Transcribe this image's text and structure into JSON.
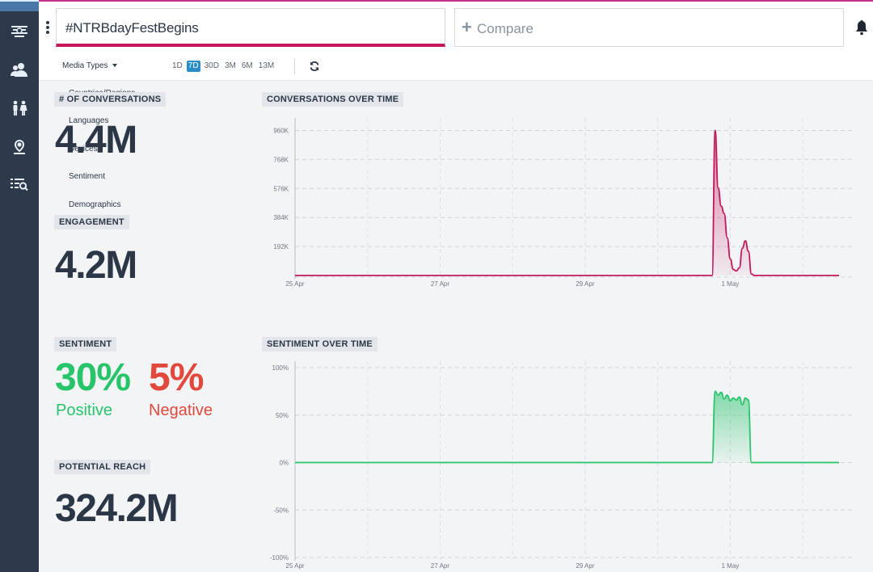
{
  "header": {
    "query": "#NTRBdayFestBegins",
    "compare_label": "Compare"
  },
  "toolbar": {
    "media_types": "Media Types",
    "ranges": [
      "1D",
      "7D",
      "30D",
      "3M",
      "6M",
      "13M"
    ],
    "active_range": "7D"
  },
  "dropdown": {
    "items": [
      "Countries/Regions",
      "Languages",
      "Devices",
      "Sentiment",
      "Demographics"
    ]
  },
  "metrics": {
    "conversations": {
      "label": "# OF CONVERSATIONS",
      "value": "4.4M"
    },
    "engagement": {
      "label": "ENGAGEMENT",
      "value": "4.2M"
    },
    "sentiment": {
      "label": "SENTIMENT",
      "positive_value": "30%",
      "positive_label": "Positive",
      "negative_value": "5%",
      "negative_label": "Negative"
    },
    "reach": {
      "label": "POTENTIAL REACH",
      "value": "324.2M"
    }
  },
  "colors": {
    "accent": "#c2185b",
    "positive": "#27c46a",
    "negative": "#e2483c",
    "sidebar": "#2d3a4b",
    "active_range": "#2a8dc8"
  },
  "chart_data": [
    {
      "type": "area",
      "title": "CONVERSATIONS OVER TIME",
      "x_ticks": [
        "25 Apr",
        "27 Apr",
        "29 Apr",
        "1 May"
      ],
      "y_ticks": [
        "960K",
        "768K",
        "576K",
        "384K",
        "192K"
      ],
      "ylim": [
        0,
        1000000
      ],
      "xlim": [
        "25 Apr",
        "2 May 12:00"
      ],
      "grid": true,
      "color": "#c2185b",
      "x": [
        "25 Apr",
        "30 Apr 18:00",
        "30 Apr 19:00",
        "30 Apr 20:00",
        "30 Apr 21:00",
        "30 Apr 22:00",
        "30 Apr 23:00",
        "1 May 00:00",
        "1 May 01:00",
        "1 May 02:00",
        "1 May 03:00",
        "1 May 04:00",
        "1 May 05:00",
        "1 May 06:00",
        "1 May 07:00",
        "1 May 08:00",
        "1 May 09:00",
        "2 May 12:00"
      ],
      "values": [
        0,
        0,
        960000,
        580000,
        460000,
        410000,
        250000,
        110000,
        40000,
        30000,
        50000,
        180000,
        230000,
        160000,
        10000,
        0,
        0,
        0
      ]
    },
    {
      "type": "area",
      "title": "SENTIMENT OVER TIME",
      "x_ticks": [
        "25 Apr",
        "27 Apr",
        "29 Apr",
        "1 May"
      ],
      "y_ticks": [
        "100%",
        "50%",
        "0%",
        "-50%",
        "-100%"
      ],
      "ylim": [
        -100,
        100
      ],
      "xlim": [
        "25 Apr",
        "2 May 12:00"
      ],
      "grid": true,
      "color": "#27c46a",
      "x": [
        "25 Apr",
        "30 Apr 18:00",
        "30 Apr 19:00",
        "30 Apr 20:00",
        "30 Apr 21:00",
        "30 Apr 22:00",
        "30 Apr 23:00",
        "1 May 00:00",
        "1 May 01:00",
        "1 May 02:00",
        "1 May 03:00",
        "1 May 04:00",
        "1 May 05:00",
        "1 May 06:00",
        "1 May 07:00",
        "1 May 08:00",
        "2 May 12:00"
      ],
      "values": [
        0,
        0,
        75,
        71,
        74,
        67,
        71,
        65,
        68,
        66,
        69,
        61,
        68,
        66,
        0,
        0,
        0
      ]
    }
  ]
}
